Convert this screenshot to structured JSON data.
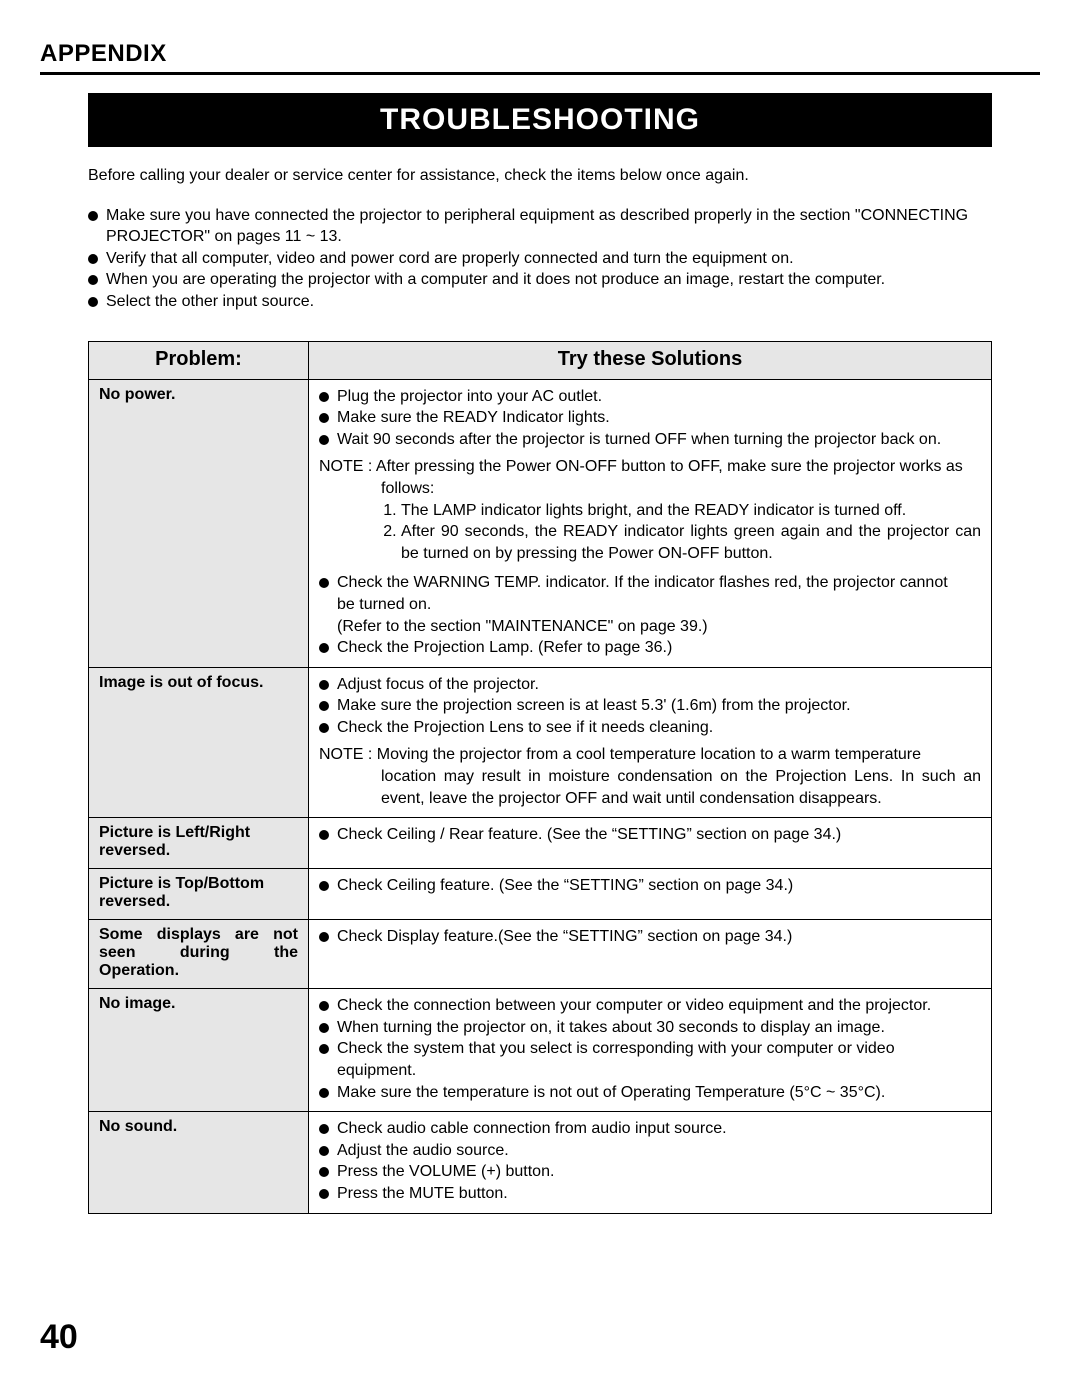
{
  "section_label": "APPENDIX",
  "title": "TROUBLESHOOTING",
  "page_number": "40",
  "intro_text": "Before calling your dealer or service center for assistance, check the items below once again.",
  "intro_bullets": [
    {
      "text": "Make sure you have connected the projector to peripheral equipment as described properly in the section \"CONNECTING",
      "cont": "PROJECTOR\"  on pages 11 ~ 13."
    },
    {
      "text": "Verify that all computer, video and power cord are properly connected and turn the equipment on."
    },
    {
      "text": "When you are operating the projector with a computer and it does not produce an image, restart the computer."
    },
    {
      "text": "Select the other input source."
    }
  ],
  "table": {
    "headers": {
      "problem": "Problem:",
      "solutions": "Try these Solutions"
    },
    "rows": [
      {
        "problem": "No power.",
        "items": [
          {
            "type": "bullet",
            "text": "Plug the projector into your AC outlet."
          },
          {
            "type": "bullet",
            "text": "Make sure the READY Indicator lights."
          },
          {
            "type": "bullet",
            "text": "Wait 90 seconds after the projector is turned OFF when turning the projector back on."
          },
          {
            "type": "note",
            "label": "NOTE : ",
            "text": "After pressing the Power ON-OFF button to OFF, make sure the projector works as",
            "body": "follows:"
          },
          {
            "type": "ol",
            "items": [
              "The LAMP indicator lights bright, and the READY indicator is turned off.",
              "After 90 seconds, the READY indicator lights green again and the projector can be turned on by pressing the Power ON-OFF button."
            ]
          },
          {
            "type": "spacer"
          },
          {
            "type": "bullet",
            "text": "Check the WARNING TEMP. indicator.  If the indicator flashes red, the projector cannot",
            "cont": "be turned on."
          },
          {
            "type": "cont",
            "text": "(Refer to the section \"MAINTENANCE\" on page 39.)"
          },
          {
            "type": "bullet",
            "text": "Check the Projection Lamp.  (Refer to page 36.)"
          }
        ]
      },
      {
        "problem": "Image is out of focus.",
        "items": [
          {
            "type": "bullet",
            "text": "Adjust focus of the projector."
          },
          {
            "type": "bullet",
            "text": "Make sure the projection screen is at least 5.3' (1.6m) from the projector."
          },
          {
            "type": "bullet",
            "text": "Check the Projection Lens to see if it needs cleaning."
          },
          {
            "type": "note",
            "label": "NOTE : ",
            "text": "Moving the projector from a cool temperature location to a warm temperature",
            "body": "location may result in moisture condensation on the Projection Lens.  In such an event, leave the projector OFF and wait until condensation disappears."
          }
        ]
      },
      {
        "problem": "Picture is Left/Right reversed.",
        "items": [
          {
            "type": "bullet",
            "text": "Check Ceiling / Rear feature.  (See the “SETTING” section on page 34.)"
          }
        ]
      },
      {
        "problem": "Picture is Top/Bottom reversed.",
        "items": [
          {
            "type": "bullet",
            "text": "Check Ceiling feature.  (See the “SETTING” section on page 34.)"
          }
        ]
      },
      {
        "problem": "Some displays are not seen during the Operation.",
        "problem_justify": true,
        "items": [
          {
            "type": "bullet",
            "text": "Check Display feature.(See the “SETTING” section on page 34.)"
          }
        ]
      },
      {
        "problem": "No image.",
        "items": [
          {
            "type": "bullet",
            "text": "Check the connection between your computer or video equipment and the projector."
          },
          {
            "type": "bullet",
            "text": "When turning the projector on, it takes about 30 seconds to display an image."
          },
          {
            "type": "bullet",
            "text": "Check the system that you select is corresponding with your computer or video",
            "cont": "equipment."
          },
          {
            "type": "bullet",
            "text": "Make sure the temperature is not out of Operating Temperature (5°C ~ 35°C)."
          }
        ]
      },
      {
        "problem": "No sound.",
        "items": [
          {
            "type": "bullet",
            "text": "Check audio cable connection from audio input source."
          },
          {
            "type": "bullet",
            "text": "Adjust the audio source."
          },
          {
            "type": "bullet",
            "text": "Press the VOLUME (+) button."
          },
          {
            "type": "bullet",
            "text": "Press the MUTE button."
          }
        ]
      }
    ]
  }
}
